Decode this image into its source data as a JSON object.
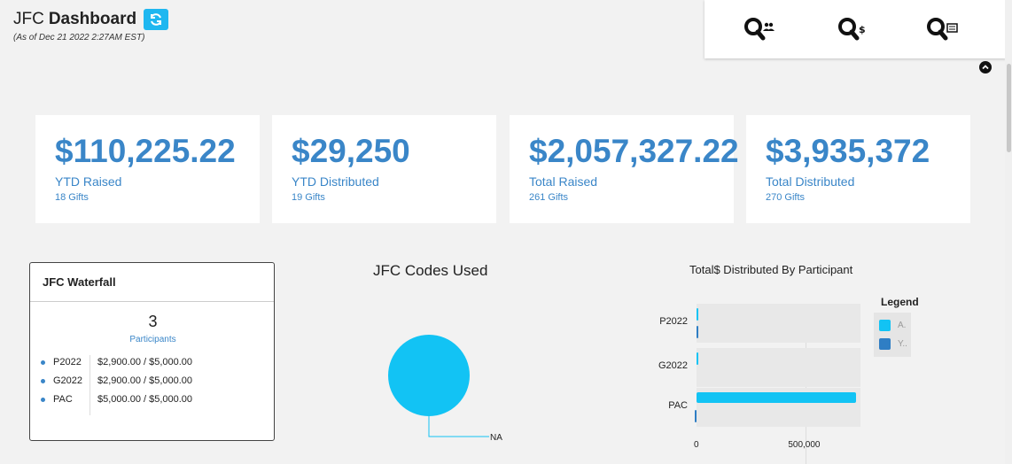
{
  "header": {
    "app_name": "JFC",
    "title": "Dashboard",
    "as_of": "(As of Dec 21 2022 2:27AM EST)"
  },
  "search_buttons": [
    {
      "icon": "search-participants-icon"
    },
    {
      "icon": "search-money-icon"
    },
    {
      "icon": "search-list-icon"
    }
  ],
  "cards": [
    {
      "amount": "$110,225.22",
      "label": "YTD Raised",
      "sub": "18 Gifts"
    },
    {
      "amount": "$29,250",
      "label": "YTD Distributed",
      "sub": "19 Gifts"
    },
    {
      "amount": "$2,057,327.22",
      "label": "Total Raised",
      "sub": "261 Gifts"
    },
    {
      "amount": "$3,935,372",
      "label": "Total Distributed",
      "sub": "270 Gifts"
    }
  ],
  "waterfall": {
    "title": "JFC Waterfall",
    "count": "3",
    "count_label": "Participants",
    "rows": [
      {
        "code": "P2022",
        "value": "$2,900.00 / $5,000.00"
      },
      {
        "code": "G2022",
        "value": "$2,900.00 / $5,000.00"
      },
      {
        "code": "PAC",
        "value": "$5,000.00 / $5,000.00"
      }
    ]
  },
  "codes_chart": {
    "title": "JFC Codes Used",
    "slice_label": "NA"
  },
  "colors": {
    "accent": "#3a86c8",
    "series_a": "#12c3f4",
    "series_y": "#2f7ec4",
    "refresh": "#1fb7f0"
  },
  "chart_data": [
    {
      "type": "pie",
      "title": "JFC Codes Used",
      "categories": [
        "NA"
      ],
      "values": [
        100
      ]
    },
    {
      "type": "bar",
      "orientation": "horizontal",
      "title": "Total$ Distributed By Participant",
      "categories": [
        "P2022",
        "G2022",
        "PAC"
      ],
      "series": [
        {
          "name": "A.",
          "values": [
            2900,
            2900,
            730000
          ]
        },
        {
          "name": "Y..",
          "values": [
            2900,
            0,
            5000
          ]
        }
      ],
      "xlim": [
        0,
        750000
      ],
      "x_ticks": [
        "0",
        "500,000"
      ],
      "legend_title": "Legend",
      "legend_position": "right",
      "grid": true
    }
  ]
}
